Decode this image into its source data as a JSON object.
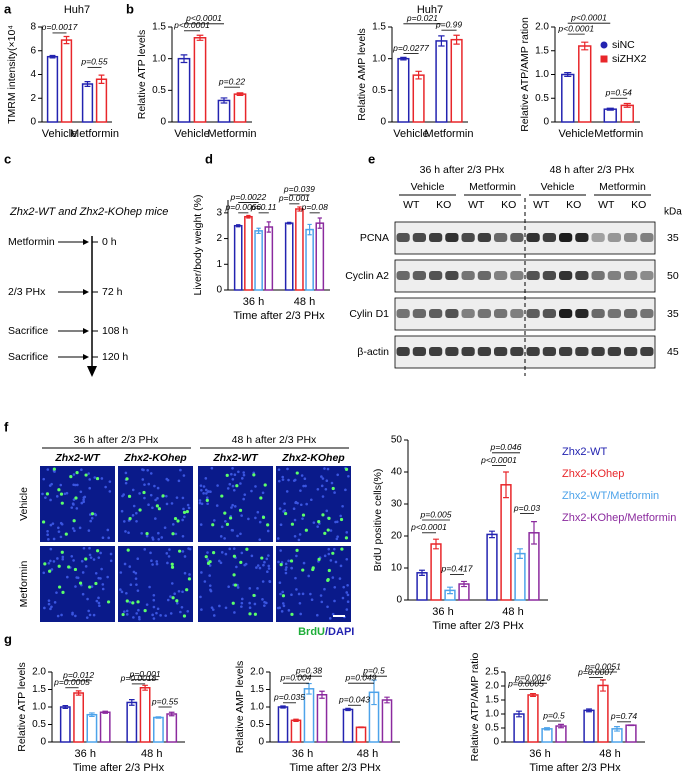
{
  "panel_labels": [
    "a",
    "b",
    "c",
    "d",
    "e",
    "f",
    "g"
  ],
  "chart_data": [
    {
      "type": "bar",
      "title": "Huh7",
      "ylabel": "TMRM intensity(×10⁴",
      "categories": [
        "Vehicle",
        "Metformin"
      ],
      "series": [
        {
          "color": "#2323b0",
          "values": [
            5.5,
            3.2
          ],
          "errors": [
            0.1,
            0.2
          ]
        },
        {
          "color": "#e8262a",
          "values": [
            6.9,
            3.6
          ],
          "errors": [
            0.3,
            0.35
          ]
        }
      ],
      "ylim": [
        0,
        8
      ],
      "yticks": [
        0,
        2,
        4,
        6,
        8
      ],
      "annotations": [
        "p=0.0017",
        "p=0.55"
      ]
    },
    {
      "type": "bar",
      "ylabel": "Relative ATP levels",
      "categories": [
        "Vehicle",
        "Metformin"
      ],
      "series": [
        {
          "color": "#2323b0",
          "values": [
            1.0,
            0.34
          ],
          "errors": [
            0.06,
            0.04
          ]
        },
        {
          "color": "#e8262a",
          "values": [
            1.33,
            0.44
          ],
          "errors": [
            0.04,
            0.02
          ]
        }
      ],
      "ylim": [
        0,
        1.5
      ],
      "yticks": [
        0,
        0.5,
        {
          "value": 1,
          "label": "1.0"
        },
        1.5
      ],
      "annotations": [
        "p<0.0001",
        "p<0.0001",
        "p=0.22"
      ]
    },
    {
      "type": "bar",
      "title": "Huh7",
      "ylabel": "Relative AMP levels",
      "categories": [
        "Vehicle",
        "Metformin"
      ],
      "series": [
        {
          "color": "#2323b0",
          "values": [
            1.0,
            1.28
          ],
          "errors": [
            0.02,
            0.08
          ]
        },
        {
          "color": "#e8262a",
          "values": [
            0.74,
            1.3
          ],
          "errors": [
            0.06,
            0.07
          ]
        }
      ],
      "ylim": [
        0,
        1.5
      ],
      "yticks": [
        0,
        0.5,
        {
          "value": 1,
          "label": "1.0"
        },
        1.5
      ],
      "annotations": [
        "p=0.021",
        "p=0.99",
        "p=0.0277"
      ]
    },
    {
      "type": "bar",
      "ylabel": "Relative ATP/AMP ration",
      "categories": [
        "Vehicle",
        "Metformin"
      ],
      "legend": "upper right",
      "series": [
        {
          "name": "siNC",
          "color": "#2323b0",
          "values": [
            1.0,
            0.27
          ],
          "errors": [
            0.04,
            0.02
          ]
        },
        {
          "name": "siZHX2",
          "color": "#e8262a",
          "values": [
            1.6,
            0.35
          ],
          "errors": [
            0.08,
            0.04
          ]
        }
      ],
      "ylim": [
        0,
        2
      ],
      "yticks": [
        0,
        0.5,
        {
          "value": 1,
          "label": "1.0"
        },
        1.5,
        {
          "value": 2,
          "label": "2.0"
        }
      ],
      "annotations": [
        "p<0.0001",
        "p<0.0001",
        "p=0.54"
      ]
    },
    {
      "type": "bar",
      "ylabel": "Liver/body weight (%)",
      "xlabel": "Time after 2/3 PHx",
      "categories": [
        "36 h",
        "48 h"
      ],
      "series": [
        {
          "color": "#2323b0",
          "values": [
            2.5,
            2.6
          ],
          "errors": [
            0.04,
            0.03
          ]
        },
        {
          "color": "#e8262a",
          "values": [
            2.85,
            3.15
          ],
          "errors": [
            0.05,
            0.08
          ]
        },
        {
          "color": "#4da3ea",
          "values": [
            2.3,
            2.35
          ],
          "errors": [
            0.1,
            0.2
          ]
        },
        {
          "color": "#8b2a9e",
          "values": [
            2.45,
            2.6
          ],
          "errors": [
            0.2,
            0.2
          ]
        }
      ],
      "ylim": [
        0,
        3.5
      ],
      "yticks": [
        0,
        1,
        2,
        3
      ],
      "annotations": [
        "p=0.0022",
        "p=0.0066",
        "p=0.11",
        "p=0.039",
        "p=0.001",
        "p=0.08"
      ]
    },
    {
      "type": "bar",
      "ylabel": "BrdU positive cells(%)",
      "xlabel": "Time after 2/3 PHx",
      "categories": [
        "36 h",
        "48 h"
      ],
      "legend": "right",
      "series": [
        {
          "name": "Zhx2-WT",
          "color": "#2323b0",
          "values": [
            8.5,
            20.5
          ],
          "errors": [
            0.8,
            1.0
          ]
        },
        {
          "name": "Zhx2-KOhep",
          "color": "#e8262a",
          "values": [
            17.5,
            36
          ],
          "errors": [
            1.5,
            4
          ]
        },
        {
          "name": "Zhx2-WT/Metformin",
          "color": "#4da3ea",
          "values": [
            3,
            14.5
          ],
          "errors": [
            1,
            1.5
          ]
        },
        {
          "name": "Zhx2-KOhep/Metformin",
          "color": "#8b2a9e",
          "values": [
            5,
            21
          ],
          "errors": [
            0.8,
            3.5
          ]
        }
      ],
      "ylim": [
        0,
        50
      ],
      "yticks": [
        0,
        10,
        20,
        30,
        40,
        50
      ],
      "annotations": [
        "p=0.005",
        "p<0.0001",
        "p=0.417",
        "p=0.046",
        "p<0.0001",
        "p=0.03"
      ]
    },
    {
      "type": "bar",
      "ylabel": "Relative ATP levels",
      "xlabel": "Time after 2/3 PHx",
      "categories": [
        "36 h",
        "48 h"
      ],
      "series": [
        {
          "color": "#2323b0",
          "values": [
            1.0,
            1.13
          ],
          "errors": [
            0.04,
            0.08
          ]
        },
        {
          "color": "#e8262a",
          "values": [
            1.4,
            1.55
          ],
          "errors": [
            0.06,
            0.07
          ]
        },
        {
          "color": "#4da3ea",
          "values": [
            0.78,
            0.7
          ],
          "errors": [
            0.05,
            0.02
          ]
        },
        {
          "color": "#8b2a9e",
          "values": [
            0.85,
            0.8
          ],
          "errors": [
            0.03,
            0.05
          ]
        }
      ],
      "ylim": [
        0,
        2
      ],
      "yticks": [
        0,
        0.5,
        {
          "value": 1,
          "label": "1.0"
        },
        1.5,
        {
          "value": 2,
          "label": "2.0"
        }
      ],
      "annotations": [
        "p=0.012",
        "p=0.0005",
        "p=0.001",
        "p=0.0018",
        "p=0.55"
      ]
    },
    {
      "type": "bar",
      "ylabel": "Relative AMP levels",
      "xlabel": "Time after 2/3 PHx",
      "categories": [
        "36 h",
        "48 h"
      ],
      "series": [
        {
          "color": "#2323b0",
          "values": [
            1.0,
            0.93
          ],
          "errors": [
            0.03,
            0.03
          ]
        },
        {
          "color": "#e8262a",
          "values": [
            0.62,
            0.42
          ],
          "errors": [
            0.03,
            0.01
          ]
        },
        {
          "color": "#4da3ea",
          "values": [
            1.52,
            1.42
          ],
          "errors": [
            0.15,
            0.35
          ]
        },
        {
          "color": "#8b2a9e",
          "values": [
            1.35,
            1.2
          ],
          "errors": [
            0.1,
            0.08
          ]
        }
      ],
      "ylim": [
        0,
        2
      ],
      "yticks": [
        0,
        0.5,
        {
          "value": 1,
          "label": "1.0"
        },
        1.5,
        {
          "value": 2,
          "label": "2.0"
        }
      ],
      "annotations": [
        "p=0.38",
        "p=0.004",
        "p=0.035",
        "p=0.5",
        "p=0.049",
        "p=0.043"
      ]
    },
    {
      "type": "bar",
      "ylabel": "Relative ATP/AMP ratio",
      "xlabel": "Time after 2/3 PHx",
      "categories": [
        "36 h",
        "48 h"
      ],
      "series": [
        {
          "color": "#2323b0",
          "values": [
            1.0,
            1.13
          ],
          "errors": [
            0.1,
            0.05
          ]
        },
        {
          "color": "#e8262a",
          "values": [
            1.68,
            2.02
          ],
          "errors": [
            0.05,
            0.2
          ]
        },
        {
          "color": "#4da3ea",
          "values": [
            0.47,
            0.47
          ],
          "errors": [
            0.04,
            0.08
          ]
        },
        {
          "color": "#8b2a9e",
          "values": [
            0.57,
            0.6
          ],
          "errors": [
            0.06,
            0.01
          ]
        }
      ],
      "ylim": [
        0,
        2.5
      ],
      "yticks": [
        0,
        0.5,
        {
          "value": 1,
          "label": "1.0"
        },
        1.5,
        {
          "value": 2,
          "label": "2.0"
        },
        2.5
      ],
      "annotations": [
        "p=0.0016",
        "p=0.0005",
        "p=0.5",
        "p=0.0051",
        "p=0.0007",
        "p=0.74"
      ]
    }
  ],
  "timeline": {
    "title": "Zhx2-WT and Zhx2-KOhep mice",
    "events": [
      {
        "label": "Metformin",
        "time": "0 h"
      },
      {
        "label": "2/3 PHx",
        "time": "72 h"
      },
      {
        "label": "Sacrifice",
        "time": "108 h"
      },
      {
        "label": "Sacrifice",
        "time": "120 h"
      }
    ]
  },
  "blot": {
    "headers": [
      "36 h after 2/3 PHx",
      "48 h after 2/3 PHx"
    ],
    "treatments": [
      "Vehicle",
      "Metformin",
      "Vehicle",
      "Metformin"
    ],
    "genotypes": [
      "WT",
      "KO",
      "WT",
      "KO",
      "WT",
      "KO",
      "WT",
      "KO"
    ],
    "unit": "kDa",
    "rows": [
      {
        "label": "PCNA",
        "kda": 35
      },
      {
        "label": "Cyclin A2",
        "kda": 50
      },
      {
        "label": "Cylin D1",
        "kda": 35
      },
      {
        "label": "β-actin",
        "kda": 45
      }
    ]
  },
  "images": {
    "timepoints": [
      "36 h after 2/3 PHx",
      "48 h after 2/3 PHx"
    ],
    "genotypes": [
      "Zhx2-WT",
      "Zhx2-KOhep",
      "Zhx2-WT",
      "Zhx2-KOhep"
    ],
    "treatments": [
      "Vehicle",
      "Metformin"
    ],
    "stain": [
      "BrdU",
      "/DAPI"
    ]
  }
}
